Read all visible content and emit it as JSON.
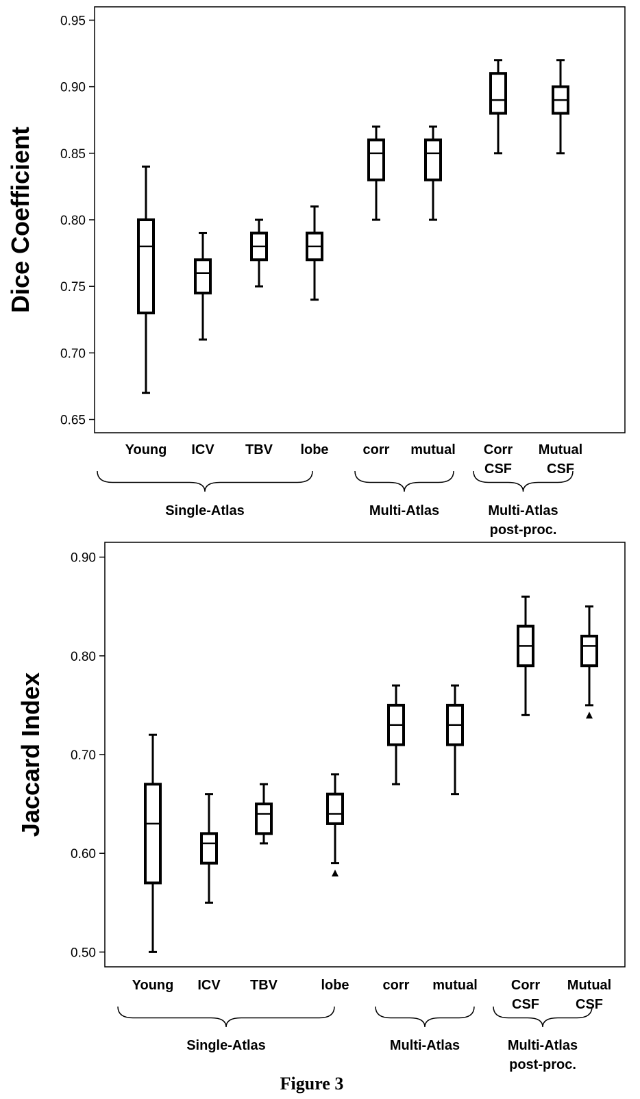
{
  "caption": "Figure 3",
  "chart_data": [
    {
      "type": "box",
      "ylabel": "Dice Coefficient",
      "ylim": [
        0.64,
        0.96
      ],
      "yticks": [
        0.65,
        0.7,
        0.75,
        0.8,
        0.85,
        0.9,
        0.95
      ],
      "ytick_labels": [
        "0.65",
        "0.70",
        "0.75",
        "0.80",
        "0.85",
        "0.90",
        "0.95"
      ],
      "categories": [
        {
          "lines": [
            "Young"
          ]
        },
        {
          "lines": [
            "ICV"
          ]
        },
        {
          "lines": [
            "TBV"
          ]
        },
        {
          "lines": [
            "lobe"
          ]
        },
        {
          "lines": [
            "corr"
          ]
        },
        {
          "lines": [
            "mutual"
          ]
        },
        {
          "lines": [
            "Corr",
            "CSF"
          ]
        },
        {
          "lines": [
            "Mutual",
            "CSF"
          ]
        }
      ],
      "boxes": [
        {
          "min": 0.67,
          "q1": 0.73,
          "median": 0.78,
          "q3": 0.8,
          "max": 0.84,
          "outliers": []
        },
        {
          "min": 0.71,
          "q1": 0.745,
          "median": 0.76,
          "q3": 0.77,
          "max": 0.79,
          "outliers": []
        },
        {
          "min": 0.75,
          "q1": 0.77,
          "median": 0.78,
          "q3": 0.79,
          "max": 0.8,
          "outliers": []
        },
        {
          "min": 0.74,
          "q1": 0.77,
          "median": 0.78,
          "q3": 0.79,
          "max": 0.81,
          "outliers": []
        },
        {
          "min": 0.8,
          "q1": 0.83,
          "median": 0.85,
          "q3": 0.86,
          "max": 0.87,
          "outliers": []
        },
        {
          "min": 0.8,
          "q1": 0.83,
          "median": 0.85,
          "q3": 0.86,
          "max": 0.87,
          "outliers": []
        },
        {
          "min": 0.85,
          "q1": 0.88,
          "median": 0.89,
          "q3": 0.91,
          "max": 0.92,
          "outliers": []
        },
        {
          "min": 0.85,
          "q1": 0.88,
          "median": 0.89,
          "q3": 0.9,
          "max": 0.92,
          "outliers": []
        }
      ],
      "groups": [
        {
          "label": [
            "Single-Atlas"
          ],
          "from": 0,
          "to": 3
        },
        {
          "label": [
            "Multi-Atlas"
          ],
          "from": 4,
          "to": 5
        },
        {
          "label": [
            "Multi-Atlas",
            "post-proc."
          ],
          "from": 6,
          "to": 7
        }
      ]
    },
    {
      "type": "box",
      "ylabel": "Jaccard Index",
      "ylim": [
        0.485,
        0.915
      ],
      "yticks": [
        0.5,
        0.6,
        0.7,
        0.8,
        0.9
      ],
      "ytick_labels": [
        "0.50",
        "0.60",
        "0.70",
        "0.80",
        "0.90"
      ],
      "categories": [
        {
          "lines": [
            "Young"
          ]
        },
        {
          "lines": [
            "ICV"
          ]
        },
        {
          "lines": [
            "TBV"
          ]
        },
        {
          "lines": [
            "lobe"
          ]
        },
        {
          "lines": [
            "corr"
          ]
        },
        {
          "lines": [
            "mutual"
          ]
        },
        {
          "lines": [
            "Corr",
            "CSF"
          ]
        },
        {
          "lines": [
            "Mutual",
            "CSF"
          ]
        }
      ],
      "boxes": [
        {
          "min": 0.5,
          "q1": 0.57,
          "median": 0.63,
          "q3": 0.67,
          "max": 0.72,
          "outliers": []
        },
        {
          "min": 0.55,
          "q1": 0.59,
          "median": 0.61,
          "q3": 0.62,
          "max": 0.66,
          "outliers": []
        },
        {
          "min": 0.61,
          "q1": 0.62,
          "median": 0.64,
          "q3": 0.65,
          "max": 0.67,
          "outliers": []
        },
        {
          "min": 0.59,
          "q1": 0.63,
          "median": 0.64,
          "q3": 0.66,
          "max": 0.68,
          "outliers": [
            0.58
          ]
        },
        {
          "min": 0.67,
          "q1": 0.71,
          "median": 0.73,
          "q3": 0.75,
          "max": 0.77,
          "outliers": []
        },
        {
          "min": 0.66,
          "q1": 0.71,
          "median": 0.73,
          "q3": 0.75,
          "max": 0.77,
          "outliers": []
        },
        {
          "min": 0.74,
          "q1": 0.79,
          "median": 0.81,
          "q3": 0.83,
          "max": 0.86,
          "outliers": []
        },
        {
          "min": 0.75,
          "q1": 0.79,
          "median": 0.81,
          "q3": 0.82,
          "max": 0.85,
          "outliers": [
            0.74
          ]
        }
      ],
      "groups": [
        {
          "label": [
            "Single-Atlas"
          ],
          "from": 0,
          "to": 3
        },
        {
          "label": [
            "Multi-Atlas"
          ],
          "from": 4,
          "to": 5
        },
        {
          "label": [
            "Multi-Atlas",
            "post-proc."
          ],
          "from": 6,
          "to": 7
        }
      ]
    }
  ]
}
